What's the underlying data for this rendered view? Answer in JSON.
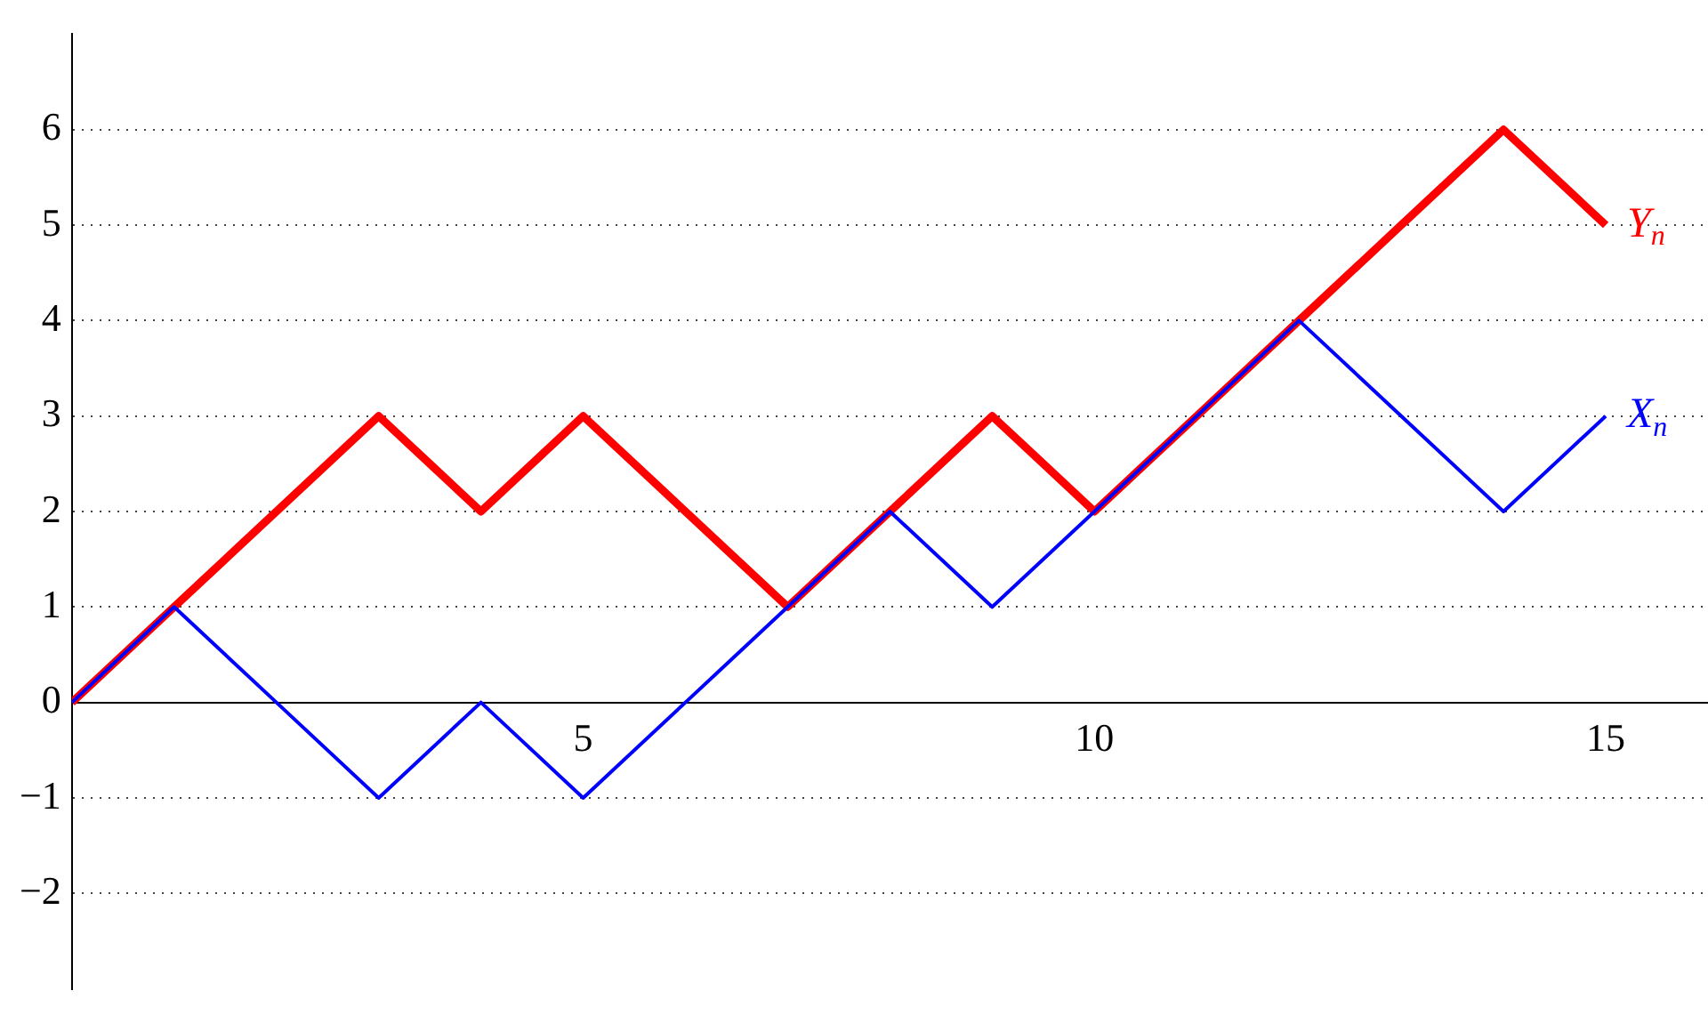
{
  "chart_data": {
    "type": "line",
    "x": [
      0,
      1,
      2,
      3,
      4,
      5,
      6,
      7,
      8,
      9,
      10,
      11,
      12,
      13,
      14,
      15
    ],
    "series": [
      {
        "name": "X$_{n}$",
        "color": "#0000ff",
        "values": [
          0,
          1,
          0,
          -1,
          0,
          -1,
          0,
          1,
          2,
          1,
          2,
          3,
          4,
          3,
          2,
          3
        ]
      },
      {
        "name": "Y$_{n}$",
        "color": "#ff0000",
        "values": [
          0,
          1,
          2,
          3,
          2,
          3,
          2,
          1,
          2,
          3,
          2,
          3,
          4,
          5,
          6,
          5
        ]
      }
    ],
    "xlim": [
      0,
      16
    ],
    "xticks": [
      5,
      10,
      15
    ],
    "ylim": [
      -3,
      7
    ],
    "yticks": [
      -2,
      -1,
      0,
      1,
      2,
      3,
      4,
      5,
      6
    ],
    "grid": "y",
    "legend": false,
    "marker": "none",
    "line_style": "solid"
  }
}
